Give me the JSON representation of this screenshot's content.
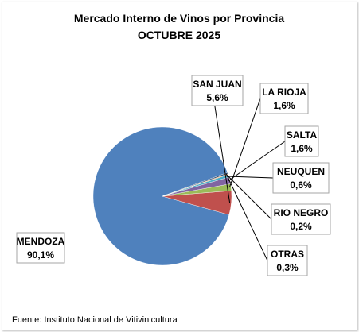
{
  "chart_data": {
    "type": "pie",
    "title": "Mercado Interno de Vinos por Provincia",
    "subtitle": "OCTUBRE 2025",
    "slices": [
      {
        "label": "MENDOZA",
        "value": 90.1,
        "display": "90,1%",
        "color": "#4f81bd"
      },
      {
        "label": "SAN JUAN",
        "value": 5.6,
        "display": "5,6%",
        "color": "#c0504d"
      },
      {
        "label": "LA RIOJA",
        "value": 1.6,
        "display": "1,6%",
        "color": "#9bbb59"
      },
      {
        "label": "SALTA",
        "value": 1.6,
        "display": "1,6%",
        "color": "#8064a2"
      },
      {
        "label": "NEUQUEN",
        "value": 0.6,
        "display": "0,6%",
        "color": "#4bacc6"
      },
      {
        "label": "RIO NEGRO",
        "value": 0.2,
        "display": "0,2%",
        "color": "#f79646"
      },
      {
        "label": "OTRAS",
        "value": 0.3,
        "display": "0,3%",
        "color": "#2c4d75"
      }
    ]
  },
  "source": "Fuente: Instituto Nacional de Vitivinicultura"
}
